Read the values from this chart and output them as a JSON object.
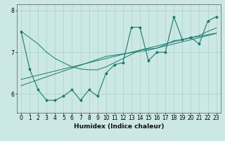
{
  "xlabel": "Humidex (Indice chaleur)",
  "ylabel": "",
  "bg_color": "#cce8e4",
  "grid_color": "#aad0cc",
  "line_color": "#1a7a6e",
  "x_data": [
    0,
    1,
    2,
    3,
    4,
    5,
    6,
    7,
    8,
    9,
    10,
    11,
    12,
    13,
    14,
    15,
    16,
    17,
    18,
    19,
    20,
    21,
    22,
    23
  ],
  "y_main": [
    7.5,
    6.6,
    6.1,
    5.85,
    5.85,
    5.95,
    6.1,
    5.85,
    6.1,
    5.95,
    6.5,
    6.7,
    6.75,
    7.6,
    7.6,
    6.8,
    7.0,
    7.0,
    7.85,
    7.3,
    7.35,
    7.2,
    7.75,
    7.85
  ],
  "y_line1": [
    6.2,
    6.27,
    6.34,
    6.41,
    6.48,
    6.55,
    6.62,
    6.69,
    6.76,
    6.83,
    6.9,
    6.93,
    6.96,
    6.99,
    7.02,
    7.05,
    7.1,
    7.15,
    7.2,
    7.25,
    7.3,
    7.35,
    7.4,
    7.45
  ],
  "y_line2": [
    6.35,
    6.4,
    6.45,
    6.5,
    6.55,
    6.6,
    6.65,
    6.7,
    6.75,
    6.8,
    6.85,
    6.9,
    6.95,
    7.0,
    7.05,
    7.1,
    7.15,
    7.2,
    7.25,
    7.3,
    7.35,
    7.38,
    7.42,
    7.46
  ],
  "y_line3": [
    7.5,
    7.35,
    7.2,
    7.0,
    6.85,
    6.75,
    6.65,
    6.6,
    6.58,
    6.58,
    6.65,
    6.75,
    6.85,
    6.95,
    7.05,
    7.08,
    7.1,
    7.18,
    7.28,
    7.3,
    7.35,
    7.4,
    7.5,
    7.58
  ],
  "ylim": [
    5.55,
    8.15
  ],
  "yticks": [
    6,
    7,
    8
  ],
  "xticks": [
    0,
    1,
    2,
    3,
    4,
    5,
    6,
    7,
    8,
    9,
    10,
    11,
    12,
    13,
    14,
    15,
    16,
    17,
    18,
    19,
    20,
    21,
    22,
    23
  ],
  "tick_fontsize": 5.5,
  "xlabel_fontsize": 6.5
}
